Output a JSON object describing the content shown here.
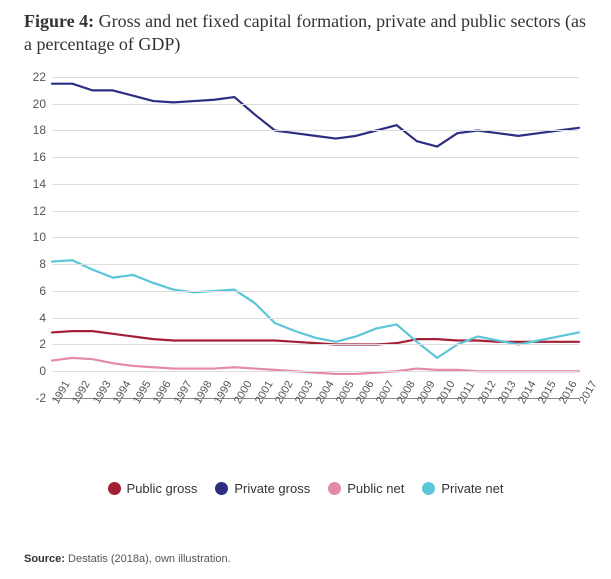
{
  "figure_label": "Figure 4:",
  "title": "Gross and net fixed capital formation, private and public sectors (as a percentage of GDP)",
  "source_label": "Source:",
  "source_text": "Destatis (2018a), own illustration.",
  "chart": {
    "type": "line",
    "background_color": "#ffffff",
    "grid_color": "#dddddd",
    "axis_color": "#888888",
    "tick_fontsize": 12,
    "xtick_fontsize": 11,
    "title_fontsize": 18,
    "ylim": [
      -2,
      22
    ],
    "ytick_step": 2,
    "years": [
      1991,
      1992,
      1993,
      1994,
      1995,
      1996,
      1997,
      1998,
      1999,
      2000,
      2001,
      2002,
      2003,
      2004,
      2005,
      2006,
      2007,
      2008,
      2009,
      2010,
      2011,
      2012,
      2013,
      2014,
      2015,
      2016,
      2017
    ],
    "line_width": 2.2,
    "series": [
      {
        "name": "Public gross",
        "color": "#a31f34",
        "values": [
          2.9,
          3.0,
          3.0,
          2.8,
          2.6,
          2.4,
          2.3,
          2.3,
          2.3,
          2.3,
          2.3,
          2.3,
          2.2,
          2.1,
          2.0,
          2.0,
          2.0,
          2.1,
          2.4,
          2.4,
          2.3,
          2.3,
          2.2,
          2.2,
          2.2,
          2.2,
          2.2
        ]
      },
      {
        "name": "Private gross",
        "color": "#2c2e83",
        "values": [
          21.5,
          21.5,
          21.0,
          21.0,
          20.6,
          20.2,
          20.1,
          20.2,
          20.3,
          20.5,
          19.2,
          18.0,
          17.8,
          17.6,
          17.4,
          17.6,
          18.0,
          18.4,
          17.2,
          16.8,
          17.8,
          18.0,
          17.8,
          17.6,
          17.8,
          18.0,
          18.2
        ]
      },
      {
        "name": "Public net",
        "color": "#e48aa4",
        "values": [
          0.8,
          1.0,
          0.9,
          0.6,
          0.4,
          0.3,
          0.2,
          0.2,
          0.2,
          0.3,
          0.2,
          0.1,
          0.0,
          -0.1,
          -0.2,
          -0.2,
          -0.1,
          0.0,
          0.2,
          0.1,
          0.1,
          0.0,
          0.0,
          0.0,
          0.0,
          0.0,
          0.0
        ]
      },
      {
        "name": "Private net",
        "color": "#5bc5d9",
        "values": [
          8.2,
          8.3,
          7.6,
          7.0,
          7.2,
          6.6,
          6.1,
          5.9,
          6.0,
          6.1,
          5.1,
          3.6,
          3.0,
          2.5,
          2.2,
          2.6,
          3.2,
          3.5,
          2.2,
          1.0,
          2.0,
          2.6,
          2.3,
          2.0,
          2.3,
          2.6,
          2.9
        ]
      }
    ],
    "legend_position": "bottom"
  }
}
